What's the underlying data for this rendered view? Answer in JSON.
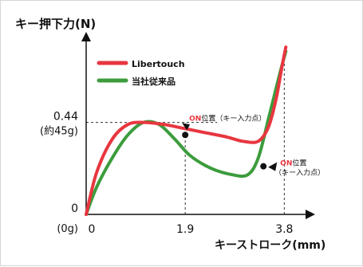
{
  "chart_data": {
    "type": "line",
    "ylabel": "キー押下力(N)",
    "xlabel": "キーストローク(mm)",
    "x_ticks": [
      {
        "value": 0,
        "label": "0"
      },
      {
        "value": 1.9,
        "label": "1.9"
      },
      {
        "value": 3.8,
        "label": "3.8"
      }
    ],
    "y_ticks": [
      {
        "value": 0,
        "label": "0",
        "sublabel": "(0g)"
      },
      {
        "value": 0.44,
        "label": "0.44",
        "sublabel": "(約45g)"
      }
    ],
    "xlim": [
      0,
      4.3
    ],
    "ylim": [
      0,
      0.85
    ],
    "grid": false,
    "legend_position": "top-left",
    "series": [
      {
        "name": "Libertouch",
        "color": "#e8363f",
        "x": [
          0,
          0.2,
          0.5,
          0.8,
          1.1,
          1.5,
          1.9,
          2.3,
          2.7,
          3.0,
          3.3,
          3.5,
          3.65,
          3.75,
          3.83
        ],
        "y": [
          0,
          0.2,
          0.36,
          0.43,
          0.44,
          0.43,
          0.41,
          0.39,
          0.37,
          0.35,
          0.35,
          0.42,
          0.56,
          0.7,
          0.8
        ]
      },
      {
        "name": "当社従来品",
        "color": "#3c9c3c",
        "x": [
          0,
          0.2,
          0.5,
          0.8,
          1.1,
          1.4,
          1.7,
          2.0,
          2.4,
          2.8,
          3.1,
          3.3,
          3.5,
          3.7,
          3.83
        ],
        "y": [
          0,
          0.13,
          0.27,
          0.38,
          0.44,
          0.43,
          0.36,
          0.28,
          0.22,
          0.19,
          0.19,
          0.27,
          0.46,
          0.66,
          0.78
        ]
      }
    ],
    "annotations": [
      {
        "series": "Libertouch",
        "x": 1.9,
        "y": 0.38,
        "highlight": "ON",
        "label": "位置（キー入力点）"
      },
      {
        "series": "当社従来品",
        "x": 3.4,
        "y": 0.23,
        "highlight": "ON",
        "label": "位置",
        "label2": "（キー入力点）"
      }
    ]
  }
}
